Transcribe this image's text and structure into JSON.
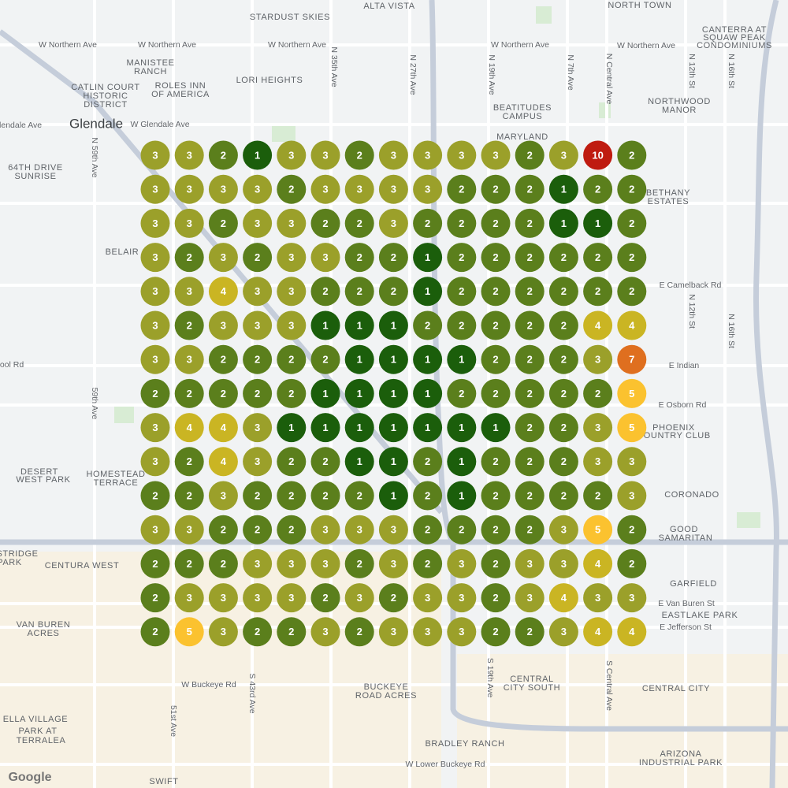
{
  "map": {
    "labels": [
      "ALTA VISTA",
      "STARDUST SKIES",
      "NORTH TOWN",
      "CANTERRA AT",
      "SQUAW PEAK",
      "CONDOMINIUMS",
      "W Northern Ave",
      "W Northern Ave",
      "W Northern Ave",
      "W Northern Ave",
      "W Northern Ave",
      "MANISTEE",
      "RANCH",
      "CATLIN COURT",
      "HISTORIC",
      "DISTRICT",
      "ROLES INN",
      "OF AMERICA",
      "LORI HEIGHTS",
      "Glendale",
      "W Glendale Ave",
      "Glendale Ave",
      "BEATITUDES",
      "CAMPUS",
      "MARYLAND",
      "NORTHWOOD",
      "MANOR",
      "64TH DRIVE",
      "SUNRISE",
      "BETHANY",
      "ESTATES",
      "BELAIR",
      "E Camelback Rd",
      "ool Rd",
      "E Indian",
      "E Osborn Rd",
      "PHOENIX",
      "COUNTRY CLUB",
      "DESERT",
      "WEST PARK",
      "HOMESTEAD",
      "TERRACE",
      "CORONADO",
      "GOOD",
      "SAMARITAN",
      "STRIDGE",
      "PARK",
      "CENTURA WEST",
      "GARFIELD",
      "E Van Buren St",
      "EASTLAKE PARK",
      "VAN BUREN",
      "ACRES",
      "E Jefferson St",
      "W Buckeye Rd",
      "BUCKEYE",
      "ROAD ACRES",
      "CENTRAL",
      "CITY SOUTH",
      "CENTRAL CITY",
      "ELLA VILLAGE",
      "PARK AT",
      "TERRALEA",
      "BRADLEY RANCH",
      "ARIZONA",
      "INDUSTRIAL PARK",
      "W Lower Buckeye Rd",
      "SWIFT",
      "N 59th Ave",
      "N 35th Ave",
      "N 27th Ave",
      "N 19th Ave",
      "N 7th Ave",
      "N Central Ave",
      "N 12th St",
      "N 16th St",
      "59th Ave",
      "N 12th St",
      "N 16th St",
      "51st Ave",
      "S 43rd Ave",
      "S 19th Ave",
      "S Central Ave"
    ],
    "attribution": "Google"
  },
  "grid": {
    "colors": {
      "1": "#1b5e0b",
      "2": "#5b7f1c",
      "3": "#9ba02a",
      "4": "#cab523",
      "5": "#fbc22f",
      "7": "#df6f1f",
      "10": "#bf1b10"
    },
    "rows": [
      [
        3,
        3,
        2,
        1,
        3,
        3,
        2,
        3,
        3,
        3,
        3,
        2,
        3,
        10,
        2
      ],
      [
        3,
        3,
        3,
        3,
        2,
        3,
        3,
        3,
        3,
        2,
        2,
        2,
        1,
        2,
        2
      ],
      [
        3,
        3,
        2,
        3,
        3,
        2,
        2,
        3,
        2,
        2,
        2,
        2,
        1,
        1,
        2
      ],
      [
        3,
        2,
        3,
        2,
        3,
        3,
        2,
        2,
        1,
        2,
        2,
        2,
        2,
        2,
        2
      ],
      [
        3,
        3,
        4,
        3,
        3,
        2,
        2,
        2,
        1,
        2,
        2,
        2,
        2,
        2,
        2
      ],
      [
        3,
        2,
        3,
        3,
        3,
        1,
        1,
        1,
        2,
        2,
        2,
        2,
        2,
        4,
        4
      ],
      [
        3,
        3,
        2,
        2,
        2,
        2,
        1,
        1,
        1,
        1,
        2,
        2,
        2,
        3,
        7
      ],
      [
        2,
        2,
        2,
        2,
        2,
        1,
        1,
        1,
        1,
        2,
        2,
        2,
        2,
        2,
        5
      ],
      [
        3,
        4,
        4,
        3,
        1,
        1,
        1,
        1,
        1,
        1,
        1,
        2,
        2,
        3,
        5
      ],
      [
        3,
        2,
        4,
        3,
        2,
        2,
        1,
        1,
        2,
        1,
        2,
        2,
        2,
        3,
        3
      ],
      [
        2,
        2,
        3,
        2,
        2,
        2,
        2,
        1,
        2,
        1,
        2,
        2,
        2,
        2,
        3
      ],
      [
        3,
        3,
        2,
        2,
        2,
        3,
        3,
        3,
        2,
        2,
        2,
        2,
        3,
        5,
        2
      ],
      [
        2,
        2,
        2,
        3,
        3,
        3,
        2,
        3,
        2,
        3,
        2,
        3,
        3,
        4,
        2
      ],
      [
        2,
        3,
        3,
        3,
        3,
        2,
        3,
        2,
        3,
        3,
        2,
        3,
        4,
        3,
        3
      ],
      [
        2,
        5,
        3,
        2,
        2,
        3,
        2,
        3,
        3,
        3,
        2,
        2,
        3,
        4,
        4
      ]
    ]
  }
}
